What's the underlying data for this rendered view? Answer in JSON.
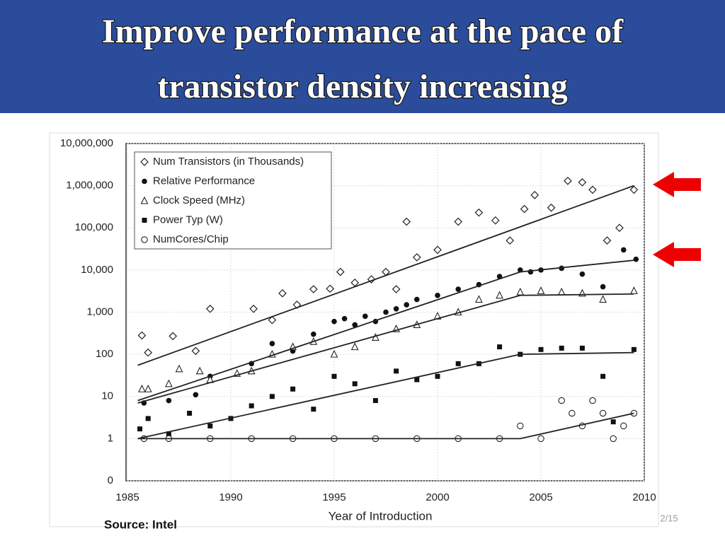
{
  "slide": {
    "title_lines": [
      "Improve performance at the pace of",
      "transistor density increasing"
    ],
    "source": "Source: Intel",
    "page": "2/15"
  },
  "chart_data": {
    "type": "scatter",
    "x_label": "Year of Introduction",
    "log_y": true,
    "grid": true,
    "legend": "upper left",
    "xlim": [
      1985,
      2010
    ],
    "xticks": [
      1985,
      1990,
      1995,
      2000,
      2005,
      2010
    ],
    "ylim": [
      0.1,
      10000000
    ],
    "yticks": [
      {
        "value": 0.1,
        "label": "0"
      },
      1,
      10,
      100,
      {
        "value": 1000,
        "label": "1,000"
      },
      {
        "value": 10000,
        "label": "10,000"
      },
      {
        "value": 100000,
        "label": "100,000"
      },
      {
        "value": 1000000,
        "label": "1,000,000"
      },
      {
        "value": 10000000,
        "label": "10,000,000"
      }
    ],
    "series": [
      {
        "name": "Num Transistors (in Thousands)",
        "marker": "diamond",
        "color": "#222222",
        "x": [
          1985.7,
          1986,
          1987.2,
          1988.3,
          1989,
          1991.1,
          1992,
          1992.5,
          1993.2,
          1994,
          1994.8,
          1995.3,
          1996,
          1996.8,
          1997.5,
          1998,
          1998.5,
          1999,
          2000,
          2001,
          2002,
          2002.8,
          2003.5,
          2004.2,
          2004.7,
          2005.5,
          2006.3,
          2007,
          2007.5,
          2008.2,
          2008.8,
          2009.5
        ],
        "values": [
          280,
          110,
          270,
          120,
          1200,
          1200,
          650,
          2800,
          1500,
          3500,
          3600,
          9000,
          5000,
          6000,
          9000,
          3500,
          140000,
          20000,
          30000,
          140000,
          230000,
          150000,
          50000,
          280000,
          600000,
          300000,
          1300000,
          1200000,
          800000,
          50000,
          100000,
          800000
        ]
      },
      {
        "name": "Relative Performance",
        "marker": "dot",
        "color": "#111111",
        "x": [
          1985.8,
          1987,
          1988.3,
          1989,
          1991,
          1992,
          1993,
          1994,
          1995,
          1995.5,
          1996,
          1996.5,
          1997,
          1997.5,
          1998,
          1998.5,
          1999,
          2000,
          2001,
          2002,
          2003,
          2004,
          2004.5,
          2005,
          2006,
          2007,
          2008,
          2009,
          2009.6
        ],
        "values": [
          7,
          8,
          11,
          30,
          60,
          180,
          120,
          300,
          600,
          700,
          500,
          800,
          600,
          1000,
          1200,
          1500,
          2000,
          2500,
          3500,
          4500,
          7000,
          10000,
          9000,
          10000,
          11000,
          8000,
          4000,
          30000,
          18000
        ]
      },
      {
        "name": "Clock Speed (MHz)",
        "marker": "triangle",
        "color": "#222222",
        "x": [
          1985.7,
          1986,
          1987,
          1987.5,
          1988.5,
          1989,
          1990.3,
          1991,
          1992,
          1993,
          1994,
          1995,
          1996,
          1997,
          1998,
          1999,
          2000,
          2001,
          2002,
          2003,
          2004,
          2005,
          2006,
          2007,
          2008,
          2009.5
        ],
        "values": [
          15,
          15,
          20,
          45,
          40,
          25,
          35,
          40,
          100,
          150,
          200,
          100,
          150,
          250,
          400,
          500,
          800,
          1000,
          2000,
          2500,
          3000,
          3200,
          3000,
          2800,
          2000,
          3200
        ]
      },
      {
        "name": "Power Typ (W)",
        "marker": "square",
        "color": "#111111",
        "x": [
          1985.6,
          1986,
          1987,
          1988,
          1989,
          1990,
          1991,
          1992,
          1993,
          1994,
          1995,
          1996,
          1997,
          1998,
          1999,
          2000,
          2001,
          2002,
          2003,
          2004,
          2005,
          2006,
          2007,
          2008,
          2008.5,
          2009.5
        ],
        "values": [
          1.7,
          3,
          1.3,
          4,
          2,
          3,
          6,
          10,
          15,
          5,
          30,
          20,
          8,
          40,
          25,
          30,
          60,
          60,
          150,
          100,
          130,
          140,
          140,
          30,
          2.5,
          130
        ]
      },
      {
        "name": "NumCores/Chip",
        "marker": "circle",
        "color": "#222222",
        "x": [
          1985.8,
          1987,
          1989,
          1991,
          1993,
          1995,
          1997,
          1999,
          2001,
          2003,
          2004,
          2005,
          2006,
          2006.5,
          2007,
          2007.5,
          2008,
          2008.5,
          2009,
          2009.5
        ],
        "values": [
          1,
          1,
          1,
          1,
          1,
          1,
          1,
          1,
          1,
          1,
          2,
          1,
          8,
          4,
          2,
          8,
          4,
          1,
          2,
          4
        ]
      }
    ],
    "trend_lines": [
      {
        "x": [
          1985.5,
          2009.5
        ],
        "values": [
          55,
          1000000
        ]
      },
      {
        "x": [
          1985.5,
          2004,
          2009.5
        ],
        "values": [
          8,
          9000,
          17000
        ]
      },
      {
        "x": [
          1985.5,
          2004,
          2009.5
        ],
        "values": [
          7,
          2500,
          2700
        ]
      },
      {
        "x": [
          1985.5,
          2004,
          2009.5
        ],
        "values": [
          1,
          100,
          110
        ]
      },
      {
        "x": [
          1985.5,
          2004,
          2009.5
        ],
        "values": [
          1,
          1,
          4
        ]
      }
    ]
  }
}
